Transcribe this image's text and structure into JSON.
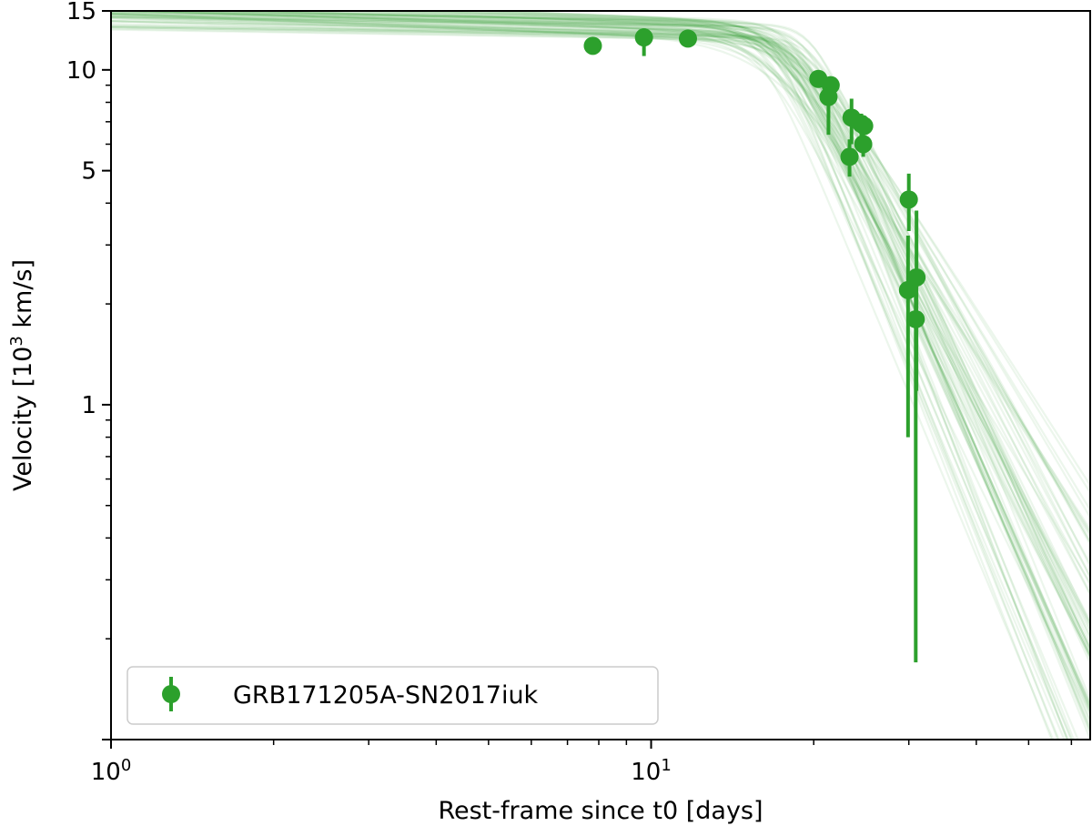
{
  "chart_data": {
    "type": "scatter",
    "xlabel": "Rest-frame since t0 [days]",
    "ylabel_main": "Velocity [10",
    "ylabel_sup": "3",
    "ylabel_end": " km/s]",
    "xscale": "log",
    "yscale": "log",
    "xlim": [
      1,
      65
    ],
    "ylim": [
      0.1,
      15
    ],
    "grid": false,
    "legend_position": "lower-left",
    "x_ticks": [
      {
        "value": 1,
        "base": "10",
        "exp": "0"
      },
      {
        "value": 10,
        "base": "10",
        "exp": "1"
      }
    ],
    "y_ticks": [
      {
        "value": 1,
        "label": "1"
      },
      {
        "value": 5,
        "label": "5"
      },
      {
        "value": 10,
        "label": "10"
      },
      {
        "value": 15,
        "label": "15"
      }
    ],
    "series": [
      {
        "name": "GRB171205A-SN2017iuk",
        "color": "#2ca02c",
        "points": [
          {
            "x": 7.8,
            "y": 11.8,
            "ylo": 11.2,
            "yhi": 12.4
          },
          {
            "x": 9.7,
            "y": 12.5,
            "ylo": 11.0,
            "yhi": 13.3
          },
          {
            "x": 11.7,
            "y": 12.4,
            "ylo": 12.1,
            "yhi": 12.7
          },
          {
            "x": 20.4,
            "y": 9.4,
            "ylo": 9.0,
            "yhi": 9.8
          },
          {
            "x": 21.5,
            "y": 9.0,
            "ylo": 8.6,
            "yhi": 9.4
          },
          {
            "x": 21.3,
            "y": 8.3,
            "ylo": 6.4,
            "yhi": 9.3
          },
          {
            "x": 23.5,
            "y": 7.2,
            "ylo": 6.0,
            "yhi": 8.2
          },
          {
            "x": 23.3,
            "y": 5.5,
            "ylo": 4.8,
            "yhi": 6.2
          },
          {
            "x": 24.5,
            "y": 6.9,
            "ylo": 6.3,
            "yhi": 7.4
          },
          {
            "x": 24.8,
            "y": 6.8,
            "ylo": 6.4,
            "yhi": 7.3
          },
          {
            "x": 24.7,
            "y": 6.0,
            "ylo": 5.5,
            "yhi": 6.5
          },
          {
            "x": 30.0,
            "y": 4.1,
            "ylo": 3.3,
            "yhi": 4.9
          },
          {
            "x": 29.9,
            "y": 2.2,
            "ylo": 0.8,
            "yhi": 3.2
          },
          {
            "x": 31.0,
            "y": 2.4,
            "ylo": 1.1,
            "yhi": 3.8
          },
          {
            "x": 30.9,
            "y": 1.8,
            "ylo": 0.17,
            "yhi": 2.5
          }
        ]
      }
    ],
    "model_band": {
      "color": "#2ca02c",
      "t_break_range": [
        16,
        20
      ],
      "v0_range": [
        12.0,
        14.0
      ],
      "slope_early_range": [
        0.02,
        0.07
      ],
      "slope_late_range": [
        2.5,
        4.2
      ]
    }
  }
}
